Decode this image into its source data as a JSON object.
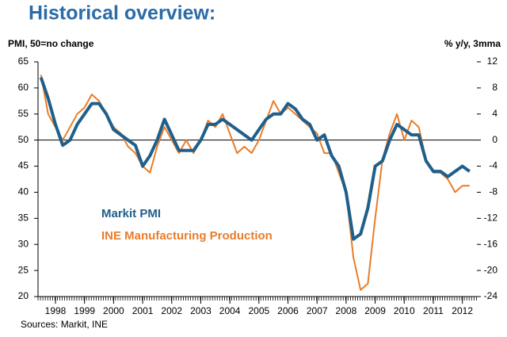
{
  "chart_data": {
    "type": "line",
    "title": "Historical overview:",
    "y_label": "PMI, 50=no change",
    "y2_label": "% y/y, 3mma",
    "source": "Sources: Markit, INE",
    "x": [
      1998.0,
      1998.25,
      1998.5,
      1998.75,
      1999.0,
      1999.25,
      1999.5,
      1999.75,
      2000.0,
      2000.25,
      2000.5,
      2000.75,
      2001.0,
      2001.25,
      2001.5,
      2001.75,
      2002.0,
      2002.25,
      2002.5,
      2002.75,
      2003.0,
      2003.25,
      2003.5,
      2003.75,
      2004.0,
      2004.25,
      2004.5,
      2004.75,
      2005.0,
      2005.25,
      2005.5,
      2005.75,
      2006.0,
      2006.25,
      2006.5,
      2006.75,
      2007.0,
      2007.25,
      2007.5,
      2007.75,
      2008.0,
      2008.25,
      2008.5,
      2008.75,
      2009.0,
      2009.25,
      2009.5,
      2009.75,
      2010.0,
      2010.25,
      2010.5,
      2010.75,
      2011.0,
      2011.25,
      2011.5,
      2011.75,
      2012.0,
      2012.25,
      2012.5,
      2012.75
    ],
    "xlim": [
      1997.9,
      2013.0
    ],
    "xticks": [
      {
        "value": 1998.5,
        "label": "1998"
      },
      {
        "value": 1999.5,
        "label": "1999"
      },
      {
        "value": 2000.5,
        "label": "2000"
      },
      {
        "value": 2001.5,
        "label": "2001"
      },
      {
        "value": 2002.5,
        "label": "2002"
      },
      {
        "value": 2003.5,
        "label": "2003"
      },
      {
        "value": 2004.5,
        "label": "2004"
      },
      {
        "value": 2005.5,
        "label": "2005"
      },
      {
        "value": 2006.5,
        "label": "2006"
      },
      {
        "value": 2007.5,
        "label": "2007"
      },
      {
        "value": 2008.5,
        "label": "2008"
      },
      {
        "value": 2009.5,
        "label": "2009"
      },
      {
        "value": 2010.5,
        "label": "2010"
      },
      {
        "value": 2011.5,
        "label": "2011"
      },
      {
        "value": 2012.5,
        "label": "2012"
      }
    ],
    "ylim": [
      20,
      65
    ],
    "yticks": [
      20,
      25,
      30,
      35,
      40,
      45,
      50,
      55,
      60,
      65
    ],
    "y2lim": [
      -24,
      12
    ],
    "y2ticks": [
      -24,
      -20,
      -16,
      -12,
      -8,
      -4,
      0,
      4,
      8,
      12
    ],
    "series": [
      {
        "name": "Markit PMI",
        "color": "#1f5f8b",
        "values": [
          62,
          58,
          53,
          49,
          50,
          53,
          55,
          57,
          57,
          55,
          52,
          51,
          50,
          49,
          45,
          47,
          50,
          54,
          51,
          48,
          48,
          48,
          50,
          53,
          53,
          54,
          53,
          52,
          51,
          50,
          52,
          54,
          55,
          55,
          57,
          56,
          54,
          53,
          50,
          51,
          47,
          45,
          40,
          31,
          32,
          37,
          45,
          46,
          50,
          53,
          52,
          51,
          51,
          46,
          44,
          44,
          43,
          44,
          45,
          44
        ]
      },
      {
        "name": "INE Manufacturing Production",
        "color": "#e87d2a",
        "axis": "y2",
        "values": [
          10,
          4,
          2,
          0,
          2,
          4,
          5,
          7,
          6,
          4,
          2,
          1,
          -1,
          -2,
          -4,
          -5,
          -1,
          2,
          0,
          -2,
          0,
          -2,
          0,
          3,
          2,
          4,
          1,
          -2,
          -1,
          -2,
          0,
          3,
          6,
          4,
          5,
          4,
          3,
          2,
          1,
          -2,
          -2,
          -5,
          -8,
          -18,
          -23,
          -22,
          -12,
          -3,
          1,
          4,
          0,
          3,
          2,
          -3,
          -5,
          -5,
          -6,
          -8,
          -7,
          -7
        ]
      }
    ]
  }
}
